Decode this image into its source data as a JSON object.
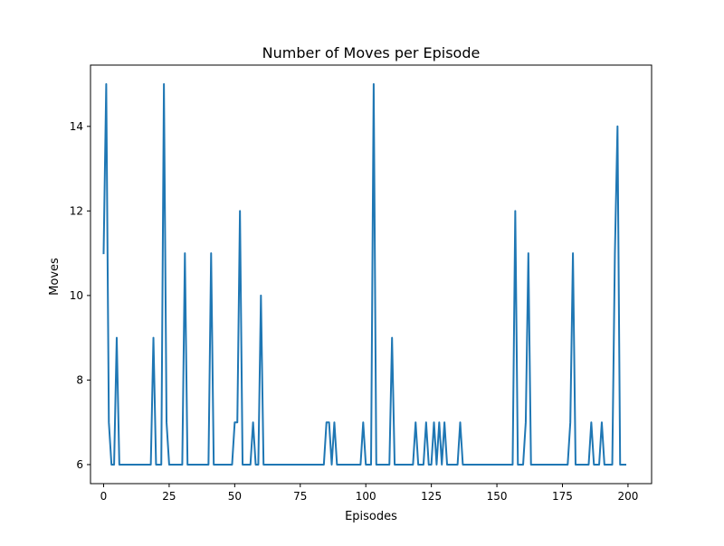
{
  "chart_data": {
    "type": "line",
    "title": "Number of Moves per Episode",
    "xlabel": "Episodes",
    "ylabel": "Moves",
    "xlim": [
      -5,
      209
    ],
    "ylim": [
      5.55,
      15.45
    ],
    "xticks": [
      0,
      25,
      50,
      75,
      100,
      125,
      150,
      175,
      200
    ],
    "yticks": [
      6,
      8,
      10,
      12,
      14
    ],
    "xtick_labels": [
      "0",
      "25",
      "50",
      "75",
      "100",
      "125",
      "150",
      "175",
      "200"
    ],
    "ytick_labels": [
      "6",
      "8",
      "10",
      "12",
      "14"
    ],
    "grid": false,
    "legend": "none",
    "series": [
      {
        "color": "#1f77b4",
        "x": [
          0,
          1,
          2,
          3,
          4,
          5,
          6,
          7,
          8,
          9,
          10,
          11,
          12,
          13,
          14,
          15,
          16,
          17,
          18,
          19,
          20,
          21,
          22,
          23,
          24,
          25,
          26,
          27,
          28,
          29,
          30,
          31,
          32,
          33,
          34,
          35,
          36,
          37,
          38,
          39,
          40,
          41,
          42,
          43,
          44,
          45,
          46,
          47,
          48,
          49,
          50,
          51,
          52,
          53,
          54,
          55,
          56,
          57,
          58,
          59,
          60,
          61,
          62,
          63,
          64,
          65,
          66,
          67,
          68,
          69,
          70,
          71,
          72,
          73,
          74,
          75,
          76,
          77,
          78,
          79,
          80,
          81,
          82,
          83,
          84,
          85,
          86,
          87,
          88,
          89,
          90,
          91,
          92,
          93,
          94,
          95,
          96,
          97,
          98,
          99,
          100,
          101,
          102,
          103,
          104,
          105,
          106,
          107,
          108,
          109,
          110,
          111,
          112,
          113,
          114,
          115,
          116,
          117,
          118,
          119,
          120,
          121,
          122,
          123,
          124,
          125,
          126,
          127,
          128,
          129,
          130,
          131,
          132,
          133,
          134,
          135,
          136,
          137,
          138,
          139,
          140,
          141,
          142,
          143,
          144,
          145,
          146,
          147,
          148,
          149,
          150,
          151,
          152,
          153,
          154,
          155,
          156,
          157,
          158,
          159,
          160,
          161,
          162,
          163,
          164,
          165,
          166,
          167,
          168,
          169,
          170,
          171,
          172,
          173,
          174,
          175,
          176,
          177,
          178,
          179,
          180,
          181,
          182,
          183,
          184,
          185,
          186,
          187,
          188,
          189,
          190,
          191,
          192,
          193,
          194,
          195,
          196,
          197,
          198,
          199
        ],
        "values": [
          11,
          15,
          7,
          6,
          6,
          9,
          6,
          6,
          6,
          6,
          6,
          6,
          6,
          6,
          6,
          6,
          6,
          6,
          6,
          9,
          6,
          6,
          6,
          15,
          7,
          6,
          6,
          6,
          6,
          6,
          6,
          11,
          6,
          6,
          6,
          6,
          6,
          6,
          6,
          6,
          6,
          11,
          6,
          6,
          6,
          6,
          6,
          6,
          6,
          6,
          7,
          7,
          12,
          6,
          6,
          6,
          6,
          7,
          6,
          6,
          10,
          6,
          6,
          6,
          6,
          6,
          6,
          6,
          6,
          6,
          6,
          6,
          6,
          6,
          6,
          6,
          6,
          6,
          6,
          6,
          6,
          6,
          6,
          6,
          6,
          7,
          7,
          6,
          7,
          6,
          6,
          6,
          6,
          6,
          6,
          6,
          6,
          6,
          6,
          7,
          6,
          6,
          6,
          15,
          6,
          6,
          6,
          6,
          6,
          6,
          9,
          6,
          6,
          6,
          6,
          6,
          6,
          6,
          6,
          7,
          6,
          6,
          6,
          7,
          6,
          6,
          7,
          6,
          7,
          6,
          7,
          6,
          6,
          6,
          6,
          6,
          7,
          6,
          6,
          6,
          6,
          6,
          6,
          6,
          6,
          6,
          6,
          6,
          6,
          6,
          6,
          6,
          6,
          6,
          6,
          6,
          6,
          12,
          6,
          6,
          6,
          7,
          11,
          6,
          6,
          6,
          6,
          6,
          6,
          6,
          6,
          6,
          6,
          6,
          6,
          6,
          6,
          6,
          7,
          11,
          6,
          6,
          6,
          6,
          6,
          6,
          7,
          6,
          6,
          6,
          7,
          6,
          6,
          6,
          6,
          11,
          14,
          6,
          6,
          6
        ]
      }
    ]
  }
}
